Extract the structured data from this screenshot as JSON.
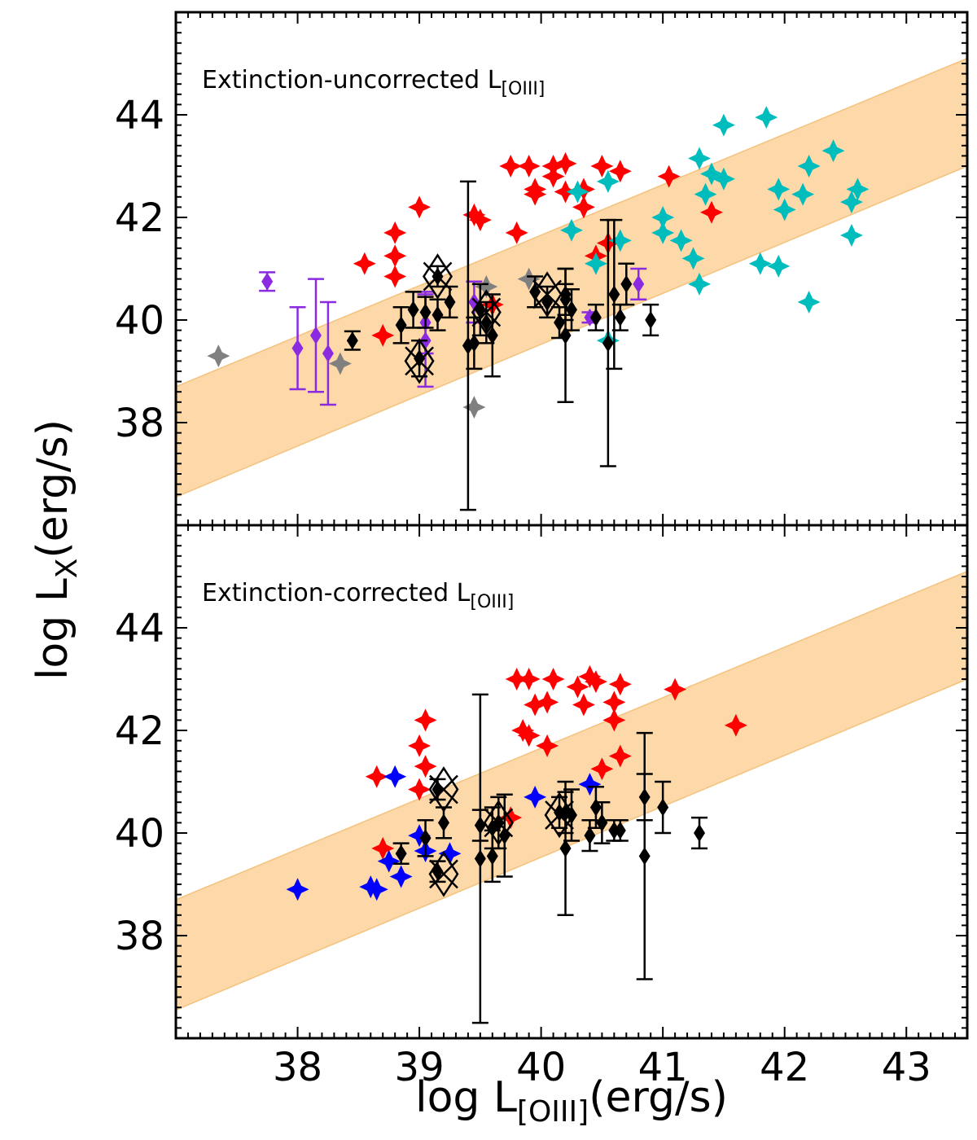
{
  "figure": {
    "xlabel": {
      "main": "log L",
      "sub": "[OIII]",
      "tail": "(erg/s)"
    },
    "ylabel": {
      "main": "log L",
      "sub": "X",
      "tail": "(erg/s)"
    }
  },
  "colors": {
    "band": "#fdd8a8",
    "band_edge": "#f5c27e",
    "red": "#ff0000",
    "cyan": "#00bdbd",
    "gray": "#808080",
    "purple": "#8a2be2",
    "blue": "#0000ff",
    "black": "#000000"
  },
  "chart_data": [
    {
      "type": "scatter",
      "panel": "top",
      "title": {
        "main": "Extinction-uncorrected L",
        "sub": "[OIII]"
      },
      "xlim": [
        37,
        43.5
      ],
      "ylim": [
        36,
        46
      ],
      "xticks": [
        38,
        39,
        40,
        41,
        42,
        43
      ],
      "yticks": [
        38,
        40,
        42,
        44
      ],
      "band": {
        "x": [
          37,
          43.5
        ],
        "upper": [
          38.7,
          45.1
        ],
        "lower": [
          36.55,
          43.0
        ]
      },
      "series": [
        {
          "name": "red",
          "marker": "star",
          "color": "red",
          "points": [
            [
              38.55,
              41.1
            ],
            [
              38.8,
              41.7
            ],
            [
              38.8,
              41.25
            ],
            [
              38.8,
              40.85
            ],
            [
              39.0,
              42.2
            ],
            [
              38.7,
              39.7
            ],
            [
              39.45,
              42.05
            ],
            [
              39.5,
              41.95
            ],
            [
              39.6,
              40.3
            ],
            [
              39.75,
              43.0
            ],
            [
              39.9,
              43.0
            ],
            [
              39.95,
              42.55
            ],
            [
              39.95,
              42.45
            ],
            [
              39.8,
              41.7
            ],
            [
              40.1,
              43.0
            ],
            [
              40.1,
              42.8
            ],
            [
              40.2,
              43.05
            ],
            [
              40.2,
              42.5
            ],
            [
              40.35,
              42.55
            ],
            [
              40.35,
              42.2
            ],
            [
              40.45,
              41.25
            ],
            [
              40.5,
              43.0
            ],
            [
              40.55,
              41.5
            ],
            [
              40.65,
              42.9
            ],
            [
              41.05,
              42.8
            ],
            [
              41.4,
              42.1
            ]
          ]
        },
        {
          "name": "cyan",
          "marker": "star",
          "color": "cyan",
          "points": [
            [
              40.3,
              42.5
            ],
            [
              40.25,
              41.75
            ],
            [
              40.45,
              41.1
            ],
            [
              40.55,
              42.7
            ],
            [
              40.55,
              39.6
            ],
            [
              40.65,
              41.55
            ],
            [
              41.0,
              42.0
            ],
            [
              41.0,
              41.7
            ],
            [
              41.15,
              41.55
            ],
            [
              41.25,
              41.2
            ],
            [
              41.3,
              43.15
            ],
            [
              41.4,
              42.85
            ],
            [
              41.35,
              42.45
            ],
            [
              41.3,
              40.7
            ],
            [
              41.5,
              43.8
            ],
            [
              41.5,
              42.75
            ],
            [
              41.8,
              41.1
            ],
            [
              41.85,
              43.95
            ],
            [
              41.95,
              42.55
            ],
            [
              42.0,
              42.15
            ],
            [
              41.95,
              41.05
            ],
            [
              42.15,
              42.45
            ],
            [
              42.2,
              43.0
            ],
            [
              42.4,
              43.3
            ],
            [
              42.55,
              42.3
            ],
            [
              42.6,
              42.55
            ],
            [
              42.55,
              41.65
            ],
            [
              42.2,
              40.35
            ]
          ]
        },
        {
          "name": "gray",
          "marker": "star",
          "color": "gray",
          "points": [
            [
              37.35,
              39.3
            ],
            [
              38.35,
              39.15
            ],
            [
              39.45,
              38.3
            ],
            [
              39.55,
              40.65
            ],
            [
              39.9,
              40.8
            ]
          ]
        },
        {
          "name": "purple",
          "marker": "diamond-errorbar",
          "color": "purple",
          "points": [
            [
              37.75,
              40.75,
              0.18
            ],
            [
              38.0,
              39.45,
              0.8
            ],
            [
              38.15,
              39.7,
              1.1
            ],
            [
              38.25,
              39.35,
              1.0
            ],
            [
              39.05,
              39.6,
              0.9
            ],
            [
              39.05,
              39.95,
              0.6
            ],
            [
              39.45,
              40.35,
              0.4
            ],
            [
              40.4,
              40.05,
              0.1
            ],
            [
              40.8,
              40.7,
              0.3
            ]
          ]
        },
        {
          "name": "black",
          "marker": "diamond-errorbar",
          "color": "black",
          "points": [
            [
              38.45,
              39.6,
              0.18
            ],
            [
              38.85,
              39.9,
              0.35
            ],
            [
              38.95,
              40.2,
              0.35
            ],
            [
              39.0,
              39.25,
              0.35
            ],
            [
              39.05,
              40.15,
              0.3
            ],
            [
              39.15,
              40.1,
              0.3
            ],
            [
              39.15,
              40.85,
              0.2
            ],
            [
              39.25,
              40.35,
              0.3
            ],
            [
              39.4,
              39.5,
              3.2
            ],
            [
              39.45,
              39.55,
              0.5
            ],
            [
              39.5,
              40.2,
              0.5
            ],
            [
              39.55,
              39.95,
              0.4
            ],
            [
              39.6,
              39.7,
              0.8
            ],
            [
              39.95,
              40.55,
              0.3
            ],
            [
              40.05,
              40.35,
              0.3
            ],
            [
              40.2,
              40.4,
              0.3
            ],
            [
              40.15,
              39.95,
              0.3
            ],
            [
              40.2,
              39.7,
              1.3
            ],
            [
              40.2,
              40.5,
              0.5
            ],
            [
              40.25,
              40.2,
              0.4
            ],
            [
              40.45,
              40.05,
              0.25
            ],
            [
              40.55,
              39.55,
              2.4
            ],
            [
              40.6,
              40.5,
              1.45
            ],
            [
              40.65,
              40.05,
              0.25
            ],
            [
              40.7,
              40.7,
              0.4
            ],
            [
              40.9,
              40.0,
              0.3
            ]
          ]
        },
        {
          "name": "open-diamond-x",
          "marker": "open-diamond-cross",
          "color": "black",
          "points": [
            [
              39.0,
              39.2
            ],
            [
              39.15,
              40.85
            ],
            [
              39.55,
              40.15
            ],
            [
              40.05,
              40.5
            ]
          ]
        }
      ]
    },
    {
      "type": "scatter",
      "panel": "bottom",
      "title": {
        "main": "Extinction-corrected L",
        "sub": "[OIII]"
      },
      "xlim": [
        37,
        43.5
      ],
      "ylim": [
        36,
        46
      ],
      "xticks": [
        38,
        39,
        40,
        41,
        42,
        43
      ],
      "yticks": [
        38,
        40,
        42,
        44
      ],
      "band": {
        "x": [
          37,
          43.5
        ],
        "upper": [
          38.7,
          45.1
        ],
        "lower": [
          36.55,
          43.0
        ]
      },
      "series": [
        {
          "name": "red",
          "marker": "star",
          "color": "red",
          "points": [
            [
              38.65,
              41.1
            ],
            [
              38.7,
              39.7
            ],
            [
              39.05,
              42.2
            ],
            [
              39.0,
              41.7
            ],
            [
              39.05,
              41.3
            ],
            [
              39.0,
              40.85
            ],
            [
              39.75,
              40.3
            ],
            [
              39.8,
              43.0
            ],
            [
              39.9,
              43.0
            ],
            [
              39.85,
              42.0
            ],
            [
              39.9,
              41.9
            ],
            [
              39.95,
              42.5
            ],
            [
              40.05,
              42.55
            ],
            [
              40.1,
              43.0
            ],
            [
              40.05,
              41.7
            ],
            [
              40.3,
              42.85
            ],
            [
              40.35,
              42.5
            ],
            [
              40.4,
              43.05
            ],
            [
              40.45,
              42.95
            ],
            [
              40.5,
              41.25
            ],
            [
              40.6,
              42.55
            ],
            [
              40.6,
              42.2
            ],
            [
              40.65,
              41.5
            ],
            [
              40.65,
              42.9
            ],
            [
              41.1,
              42.8
            ],
            [
              41.6,
              42.1
            ]
          ]
        },
        {
          "name": "blue",
          "marker": "star",
          "color": "blue",
          "points": [
            [
              38.0,
              38.9
            ],
            [
              38.6,
              38.95
            ],
            [
              38.65,
              38.9
            ],
            [
              38.75,
              39.45
            ],
            [
              38.85,
              39.15
            ],
            [
              38.8,
              41.1
            ],
            [
              39.0,
              39.95
            ],
            [
              39.05,
              39.65
            ],
            [
              39.25,
              39.6
            ],
            [
              39.95,
              40.7
            ],
            [
              40.4,
              40.95
            ]
          ]
        },
        {
          "name": "black",
          "marker": "diamond-errorbar",
          "color": "black",
          "points": [
            [
              38.85,
              39.6,
              0.2
            ],
            [
              39.05,
              39.9,
              0.35
            ],
            [
              39.15,
              40.85,
              0.2
            ],
            [
              39.15,
              39.25,
              0.2
            ],
            [
              39.2,
              40.2,
              0.3
            ],
            [
              39.5,
              40.15,
              0.3
            ],
            [
              39.5,
              39.5,
              3.2
            ],
            [
              39.6,
              39.55,
              0.5
            ],
            [
              39.6,
              40.1,
              0.4
            ],
            [
              39.65,
              40.2,
              0.5
            ],
            [
              39.7,
              39.95,
              0.8
            ],
            [
              40.15,
              40.4,
              0.3
            ],
            [
              40.2,
              40.4,
              0.4
            ],
            [
              40.2,
              39.7,
              1.3
            ],
            [
              40.25,
              40.35,
              0.5
            ],
            [
              40.4,
              39.95,
              0.3
            ],
            [
              40.45,
              40.5,
              0.4
            ],
            [
              40.5,
              40.2,
              0.4
            ],
            [
              40.6,
              40.05,
              0.2
            ],
            [
              40.65,
              40.05,
              0.2
            ],
            [
              40.85,
              40.7,
              0.45
            ],
            [
              40.85,
              39.55,
              2.4
            ],
            [
              41.0,
              40.5,
              0.5
            ],
            [
              41.3,
              40.0,
              0.3
            ]
          ]
        },
        {
          "name": "open-diamond-x",
          "marker": "open-diamond-cross",
          "color": "black",
          "points": [
            [
              39.2,
              39.2
            ],
            [
              39.2,
              40.85
            ],
            [
              39.65,
              40.2
            ],
            [
              40.15,
              40.35
            ]
          ]
        }
      ]
    }
  ]
}
